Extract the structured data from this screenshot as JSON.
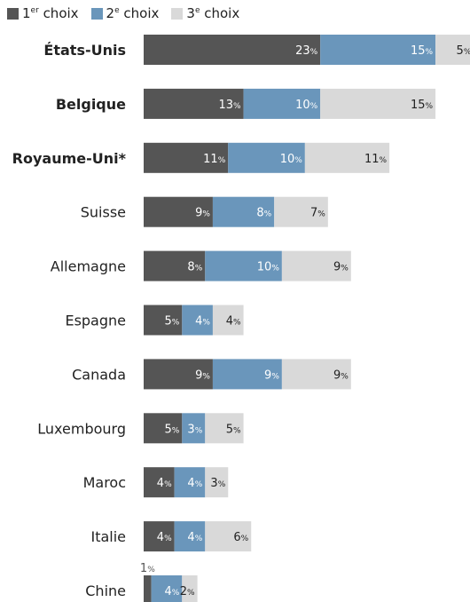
{
  "legend": [
    {
      "prefix": "1",
      "sup": "er",
      "suffix": " choix",
      "color": "#555555"
    },
    {
      "prefix": "2",
      "sup": "e",
      "suffix": " choix",
      "color": "#6a96bb"
    },
    {
      "prefix": "3",
      "sup": "e",
      "suffix": " choix",
      "color": "#d9d9d9"
    }
  ],
  "chart_data": {
    "type": "bar",
    "orientation": "horizontal",
    "stacked": true,
    "value_suffix": "%",
    "categories": [
      "États-Unis",
      "Belgique",
      "Royaume-Uni*",
      "Suisse",
      "Allemagne",
      "Espagne",
      "Canada",
      "Luxembourg",
      "Maroc",
      "Italie",
      "Chine"
    ],
    "bold_categories": [
      "États-Unis",
      "Belgique",
      "Royaume-Uni*"
    ],
    "series": [
      {
        "name": "1er choix",
        "color": "#555555",
        "label_color": "#ffffff",
        "values": [
          23,
          13,
          11,
          9,
          8,
          5,
          9,
          5,
          4,
          4,
          1
        ]
      },
      {
        "name": "2e choix",
        "color": "#6a96bb",
        "label_color": "#ffffff",
        "values": [
          15,
          10,
          10,
          8,
          10,
          4,
          9,
          3,
          4,
          4,
          4
        ]
      },
      {
        "name": "3e choix",
        "color": "#d9d9d9",
        "label_color": "#222222",
        "values": [
          5,
          15,
          11,
          7,
          9,
          4,
          9,
          5,
          3,
          6,
          2
        ]
      }
    ],
    "title": "",
    "xlabel": "",
    "ylabel": "",
    "grid": false,
    "legend_position": "top-left"
  }
}
